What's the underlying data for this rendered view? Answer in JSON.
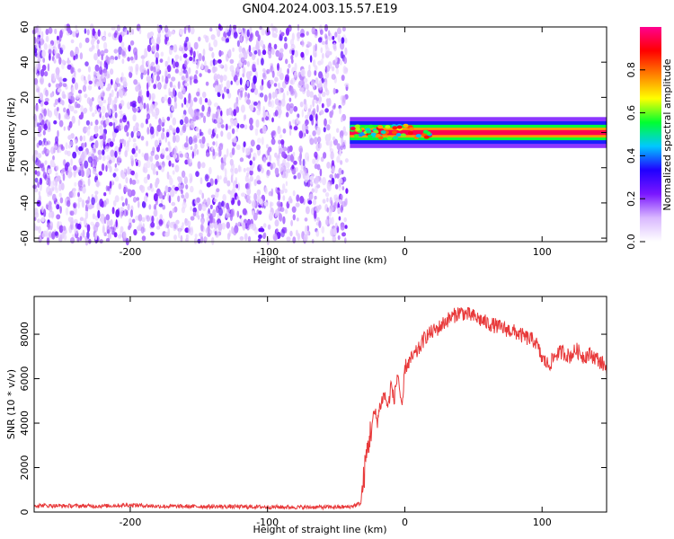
{
  "title": "GN04.2024.003.15.57.E19",
  "chart_data": [
    {
      "type": "heatmap",
      "title": "GN04.2024.003.15.57.E19",
      "xlabel": "Height of straight line (km)",
      "ylabel": "Frequency (Hz)",
      "xlim": [
        -270,
        147
      ],
      "ylim": [
        -62,
        60
      ],
      "x_ticks": [
        -200,
        -100,
        0,
        100
      ],
      "y_ticks": [
        -60,
        -40,
        -20,
        0,
        20,
        40,
        60
      ],
      "noise_region_x": [
        -270,
        -40
      ],
      "signal_band": {
        "x_start": -40,
        "x_end": 147,
        "center_frequency": 0,
        "half_width_hz": 4,
        "peak_amplitude": 1.0
      },
      "colorbar": {
        "label": "Normalized spectral amplitude",
        "range": [
          0,
          1
        ],
        "ticks": [
          0.0,
          0.2,
          0.4,
          0.6,
          0.8
        ],
        "colors": [
          "#ffffff",
          "#d9b8ff",
          "#7a16ff",
          "#2000ff",
          "#00c8ff",
          "#00ff30",
          "#ffff00",
          "#ff8000",
          "#ff0000",
          "#ff0090"
        ]
      }
    },
    {
      "type": "line",
      "xlabel": "Height of straight line (km)",
      "ylabel": "SNR (10 * v/v)",
      "xlim": [
        -270,
        147
      ],
      "ylim": [
        0,
        9700
      ],
      "x_ticks": [
        -200,
        -100,
        0,
        100
      ],
      "y_ticks": [
        0,
        2000,
        4000,
        6000,
        8000
      ],
      "color": "#e8393a",
      "series": [
        {
          "x": [
            -270,
            -250,
            -220,
            -200,
            -180,
            -150,
            -120,
            -100,
            -80,
            -60,
            -40,
            -32,
            -28,
            -25,
            -22,
            -20,
            -18,
            -15,
            -12,
            -10,
            -8,
            -5,
            -2,
            0,
            5,
            10,
            15,
            20,
            25,
            30,
            40,
            50,
            60,
            70,
            80,
            90,
            95,
            100,
            105,
            110,
            115,
            120,
            125,
            130,
            135,
            140,
            147
          ],
          "values": [
            300,
            280,
            270,
            320,
            260,
            250,
            240,
            230,
            220,
            220,
            230,
            400,
            2500,
            3600,
            4500,
            4100,
            4800,
            5300,
            4700,
            5800,
            5000,
            6300,
            4400,
            6500,
            6900,
            7300,
            7900,
            8100,
            8300,
            8600,
            9000,
            8800,
            8500,
            8300,
            8100,
            7800,
            7700,
            6900,
            6600,
            7100,
            7200,
            7000,
            7300,
            7000,
            7100,
            6900,
            6500
          ]
        }
      ]
    }
  ]
}
